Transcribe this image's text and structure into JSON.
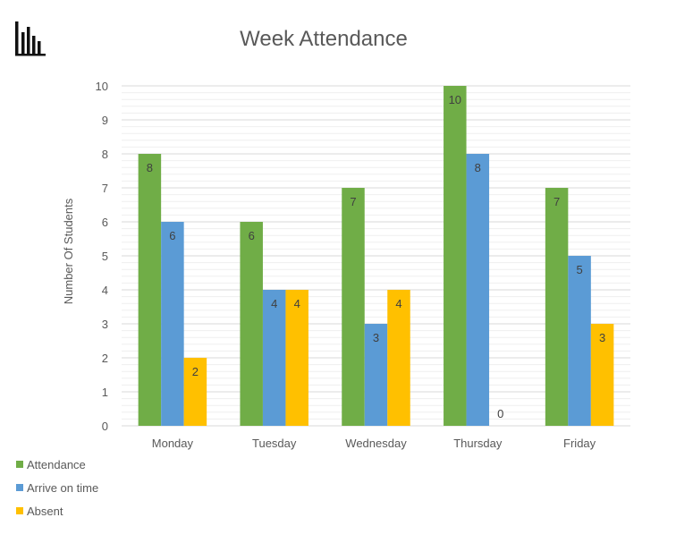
{
  "colors": {
    "attendance": "#70ad47",
    "arrive_on_time": "#5b9bd5",
    "absent": "#ffc000",
    "grid": "#d9d9d9",
    "axis_text": "#595959",
    "title_text": "#595959"
  },
  "icon": "bar-chart-icon",
  "chart_data": {
    "type": "bar",
    "title": "Week Attendance",
    "xlabel": "",
    "ylabel": "Number Of Students",
    "categories": [
      "Monday",
      "Tuesday",
      "Wednesday",
      "Thursday",
      "Friday"
    ],
    "series": [
      {
        "name": "Attendance",
        "color": "#70ad47",
        "values": [
          8,
          6,
          7,
          10,
          7
        ]
      },
      {
        "name": "Arrive on time",
        "color": "#5b9bd5",
        "values": [
          6,
          4,
          3,
          8,
          5
        ]
      },
      {
        "name": "Absent",
        "color": "#ffc000",
        "values": [
          2,
          4,
          4,
          0,
          3
        ]
      }
    ],
    "ylim": [
      0,
      10
    ],
    "yticks": [
      "0",
      "1",
      "2",
      "3",
      "4",
      "5",
      "6",
      "7",
      "8",
      "9",
      "10"
    ],
    "grid": true,
    "legend_position": "bottom-left"
  }
}
